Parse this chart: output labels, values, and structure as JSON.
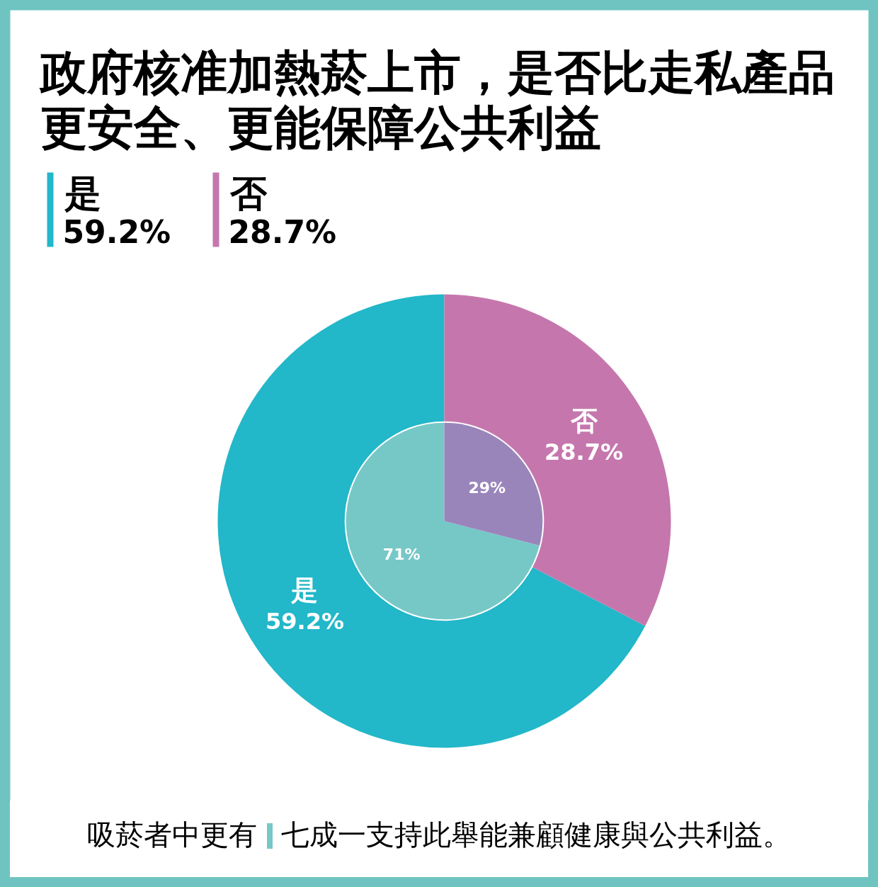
{
  "chart_data": {
    "type": "donut",
    "title": "政府核准加熱菸上市，是否比走私產品更安全、更能保障公共利益",
    "categories": [
      "是",
      "否"
    ],
    "series": [
      {
        "colors": [
          "#22b7c9",
          "#c577ad"
        ],
        "values": [
          59.2,
          28.7
        ],
        "value_labels": [
          "59.2%",
          "28.7%"
        ]
      },
      {
        "colors": [
          "#76c8c7",
          "#9a85bb"
        ],
        "values": [
          71,
          29
        ],
        "value_labels": [
          "71%",
          "29%"
        ]
      }
    ],
    "legend": "top left",
    "annotations": [
      "吸菸者中更有 七成一支持此舉能兼顧健康與公共利益。"
    ]
  }
}
